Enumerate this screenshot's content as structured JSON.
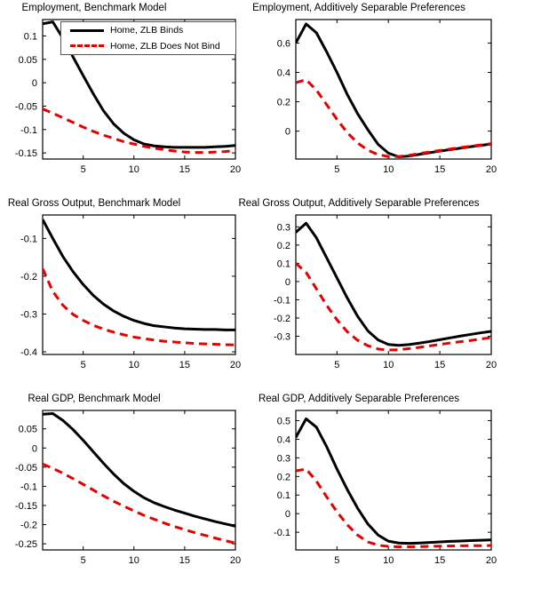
{
  "figure": {
    "background_color": "#ffffff",
    "axis_color": "#000000",
    "legend": {
      "entries": [
        {
          "label": "Home, ZLB Binds",
          "color": "#000000",
          "style": "solid"
        },
        {
          "label": "Home, ZLB Does Not Bind",
          "color": "#e60000",
          "style": "dashed"
        }
      ]
    }
  },
  "chart_data": [
    {
      "type": "line",
      "title": "Employment, Benchmark Model",
      "x": [
        1,
        2,
        3,
        4,
        5,
        6,
        7,
        8,
        9,
        10,
        11,
        12,
        13,
        14,
        15,
        16,
        17,
        18,
        19,
        20
      ],
      "xlim": [
        1,
        20
      ],
      "ylim": [
        -0.163,
        0.135
      ],
      "xticks": [
        5,
        10,
        15,
        20
      ],
      "xtick_labels": [
        "5",
        "10",
        "15",
        "20"
      ],
      "yticks": [
        0.1,
        0.05,
        0,
        -0.05,
        -0.1,
        -0.15
      ],
      "ytick_labels": [
        "0.1",
        "0.05",
        "0",
        "-0.05",
        "-0.1",
        "-0.15"
      ],
      "grid": false,
      "legend_visible": true,
      "legend_position": "upper-right",
      "series": [
        {
          "name": "Home, ZLB Binds",
          "color": "#000000",
          "style": "solid",
          "values": [
            0.126,
            0.13,
            0.095,
            0.055,
            0.015,
            -0.024,
            -0.06,
            -0.088,
            -0.108,
            -0.122,
            -0.131,
            -0.135,
            -0.137,
            -0.138,
            -0.138,
            -0.138,
            -0.138,
            -0.137,
            -0.136,
            -0.134
          ]
        },
        {
          "name": "Home, ZLB Does Not Bind",
          "color": "#e60000",
          "style": "dashed",
          "values": [
            -0.056,
            -0.065,
            -0.075,
            -0.085,
            -0.095,
            -0.104,
            -0.112,
            -0.119,
            -0.126,
            -0.131,
            -0.136,
            -0.14,
            -0.143,
            -0.146,
            -0.148,
            -0.149,
            -0.149,
            -0.148,
            -0.147,
            -0.145
          ]
        }
      ]
    },
    {
      "type": "line",
      "title": "Employment, Additively Separable Preferences",
      "x": [
        1,
        2,
        3,
        4,
        5,
        6,
        7,
        8,
        9,
        10,
        11,
        12,
        13,
        14,
        15,
        16,
        17,
        18,
        19,
        20
      ],
      "xlim": [
        1,
        20
      ],
      "ylim": [
        -0.19,
        0.76
      ],
      "xticks": [
        5,
        10,
        15,
        20
      ],
      "xtick_labels": [
        "5",
        "10",
        "15",
        "20"
      ],
      "yticks": [
        0.6,
        0.4,
        0.2,
        0
      ],
      "ytick_labels": [
        "0.6",
        "0.4",
        "0.2",
        "0"
      ],
      "grid": false,
      "legend_visible": false,
      "series": [
        {
          "name": "Home, ZLB Binds",
          "color": "#000000",
          "style": "solid",
          "values": [
            0.6,
            0.73,
            0.67,
            0.54,
            0.4,
            0.25,
            0.12,
            0.01,
            -0.09,
            -0.15,
            -0.175,
            -0.17,
            -0.158,
            -0.147,
            -0.136,
            -0.126,
            -0.116,
            -0.106,
            -0.097,
            -0.088
          ]
        },
        {
          "name": "Home, ZLB Does Not Bind",
          "color": "#e60000",
          "style": "dashed",
          "values": [
            0.33,
            0.35,
            0.28,
            0.18,
            0.08,
            -0.01,
            -0.08,
            -0.13,
            -0.16,
            -0.173,
            -0.173,
            -0.165,
            -0.153,
            -0.142,
            -0.132,
            -0.122,
            -0.112,
            -0.103,
            -0.094,
            -0.085
          ]
        }
      ]
    },
    {
      "type": "line",
      "title": "Real Gross Output, Benchmark Model",
      "x": [
        1,
        2,
        3,
        4,
        5,
        6,
        7,
        8,
        9,
        10,
        11,
        12,
        13,
        14,
        15,
        16,
        17,
        18,
        19,
        20
      ],
      "xlim": [
        1,
        20
      ],
      "ylim": [
        -0.407,
        -0.038
      ],
      "xticks": [
        5,
        10,
        15,
        20
      ],
      "xtick_labels": [
        "5",
        "10",
        "15",
        "20"
      ],
      "yticks": [
        -0.1,
        -0.2,
        -0.3,
        -0.4
      ],
      "ytick_labels": [
        "-0.1",
        "-0.2",
        "-0.3",
        "-0.4"
      ],
      "grid": false,
      "legend_visible": false,
      "series": [
        {
          "name": "Home, ZLB Binds",
          "color": "#000000",
          "style": "solid",
          "values": [
            -0.05,
            -0.1,
            -0.148,
            -0.188,
            -0.222,
            -0.251,
            -0.274,
            -0.292,
            -0.306,
            -0.317,
            -0.325,
            -0.331,
            -0.334,
            -0.337,
            -0.339,
            -0.34,
            -0.341,
            -0.341,
            -0.342,
            -0.342
          ]
        },
        {
          "name": "Home, ZLB Does Not Bind",
          "color": "#e60000",
          "style": "dashed",
          "values": [
            -0.18,
            -0.24,
            -0.277,
            -0.301,
            -0.317,
            -0.33,
            -0.34,
            -0.348,
            -0.355,
            -0.361,
            -0.365,
            -0.369,
            -0.372,
            -0.374,
            -0.376,
            -0.378,
            -0.379,
            -0.38,
            -0.381,
            -0.382
          ]
        }
      ]
    },
    {
      "type": "line",
      "title": "Real Gross Output, Additively Separable Preferences",
      "x": [
        1,
        2,
        3,
        4,
        5,
        6,
        7,
        8,
        9,
        10,
        11,
        12,
        13,
        14,
        15,
        16,
        17,
        18,
        19,
        20
      ],
      "xlim": [
        1,
        20
      ],
      "ylim": [
        -0.4,
        0.365
      ],
      "xticks": [
        5,
        10,
        15,
        20
      ],
      "xtick_labels": [
        "5",
        "10",
        "15",
        "20"
      ],
      "yticks": [
        0.3,
        0.2,
        0.1,
        0,
        -0.1,
        -0.2,
        -0.3
      ],
      "ytick_labels": [
        "0.3",
        "0.2",
        "0.1",
        "0",
        "-0.1",
        "-0.2",
        "-0.3"
      ],
      "grid": false,
      "legend_visible": false,
      "series": [
        {
          "name": "Home, ZLB Binds",
          "color": "#000000",
          "style": "solid",
          "values": [
            0.27,
            0.32,
            0.24,
            0.13,
            0.02,
            -0.09,
            -0.19,
            -0.27,
            -0.32,
            -0.345,
            -0.35,
            -0.346,
            -0.338,
            -0.329,
            -0.319,
            -0.309,
            -0.299,
            -0.29,
            -0.281,
            -0.273
          ]
        },
        {
          "name": "Home, ZLB Does Not Bind",
          "color": "#e60000",
          "style": "dashed",
          "values": [
            0.1,
            0.05,
            -0.04,
            -0.13,
            -0.21,
            -0.275,
            -0.322,
            -0.352,
            -0.37,
            -0.376,
            -0.374,
            -0.368,
            -0.361,
            -0.353,
            -0.345,
            -0.337,
            -0.33,
            -0.323,
            -0.315,
            -0.308
          ]
        }
      ]
    },
    {
      "type": "line",
      "title": "Real GDP, Benchmark Model",
      "x": [
        1,
        2,
        3,
        4,
        5,
        6,
        7,
        8,
        9,
        10,
        11,
        12,
        13,
        14,
        15,
        16,
        17,
        18,
        19,
        20
      ],
      "xlim": [
        1,
        20
      ],
      "ylim": [
        -0.266,
        0.098
      ],
      "xticks": [
        5,
        10,
        15,
        20
      ],
      "xtick_labels": [
        "5",
        "10",
        "15",
        "20"
      ],
      "yticks": [
        0.05,
        0,
        -0.05,
        -0.1,
        -0.15,
        -0.2,
        -0.25
      ],
      "ytick_labels": [
        "0.05",
        "0",
        "-0.05",
        "-0.1",
        "-0.15",
        "-0.2",
        "-0.25"
      ],
      "grid": false,
      "legend_visible": false,
      "series": [
        {
          "name": "Home, ZLB Binds",
          "color": "#000000",
          "style": "solid",
          "values": [
            0.088,
            0.09,
            0.072,
            0.048,
            0.02,
            -0.01,
            -0.04,
            -0.068,
            -0.093,
            -0.113,
            -0.13,
            -0.143,
            -0.153,
            -0.162,
            -0.17,
            -0.178,
            -0.185,
            -0.192,
            -0.198,
            -0.204
          ]
        },
        {
          "name": "Home, ZLB Does Not Bind",
          "color": "#e60000",
          "style": "dashed",
          "values": [
            -0.042,
            -0.053,
            -0.066,
            -0.08,
            -0.095,
            -0.11,
            -0.125,
            -0.139,
            -0.152,
            -0.164,
            -0.176,
            -0.186,
            -0.196,
            -0.205,
            -0.213,
            -0.221,
            -0.228,
            -0.235,
            -0.242,
            -0.248
          ]
        }
      ]
    },
    {
      "type": "line",
      "title": "Real GDP, Additively Separable Preferences",
      "x": [
        1,
        2,
        3,
        4,
        5,
        6,
        7,
        8,
        9,
        10,
        11,
        12,
        13,
        14,
        15,
        16,
        17,
        18,
        19,
        20
      ],
      "xlim": [
        1,
        20
      ],
      "ylim": [
        -0.195,
        0.555
      ],
      "xticks": [
        5,
        10,
        15,
        20
      ],
      "xtick_labels": [
        "5",
        "10",
        "15",
        "20"
      ],
      "yticks": [
        0.5,
        0.4,
        0.3,
        0.2,
        0.1,
        0,
        -0.1
      ],
      "ytick_labels": [
        "0.5",
        "0.4",
        "0.3",
        "0.2",
        "0.1",
        "0",
        "-0.1"
      ],
      "grid": false,
      "legend_visible": false,
      "series": [
        {
          "name": "Home, ZLB Binds",
          "color": "#000000",
          "style": "solid",
          "values": [
            0.41,
            0.51,
            0.465,
            0.36,
            0.24,
            0.13,
            0.03,
            -0.055,
            -0.115,
            -0.148,
            -0.158,
            -0.16,
            -0.158,
            -0.155,
            -0.152,
            -0.149,
            -0.147,
            -0.145,
            -0.143,
            -0.141
          ]
        },
        {
          "name": "Home, ZLB Does Not Bind",
          "color": "#e60000",
          "style": "dashed",
          "values": [
            0.23,
            0.24,
            0.175,
            0.09,
            0.01,
            -0.06,
            -0.115,
            -0.152,
            -0.17,
            -0.176,
            -0.178,
            -0.178,
            -0.177,
            -0.176,
            -0.175,
            -0.174,
            -0.173,
            -0.172,
            -0.172,
            -0.171
          ]
        }
      ]
    }
  ]
}
